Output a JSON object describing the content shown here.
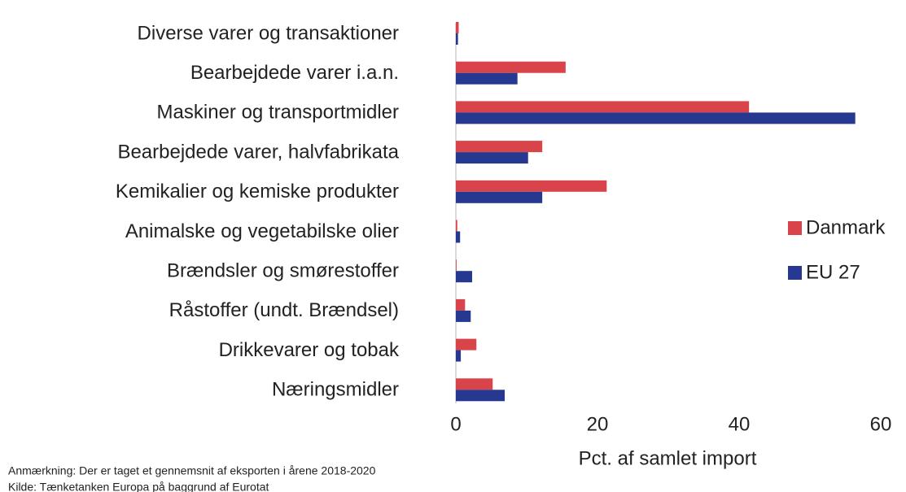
{
  "chart_data": {
    "type": "hbar",
    "categories": [
      "Diverse varer og transaktioner",
      "Bearbejdede varer i.a.n.",
      "Maskiner og transportmidler",
      "Bearbejdede varer, halvfabrikata",
      "Kemikalier og kemiske produkter",
      "Animalske og vegetabilske olier",
      "Brændsler og smørestoffer",
      "Råstoffer (undt. Brændsel)",
      "Drikkevarer og tobak",
      "Næringsmidler"
    ],
    "series": [
      {
        "name": "Danmark",
        "color": "#d9444b",
        "values": [
          0.4,
          15.5,
          41.4,
          12.2,
          21.3,
          0.2,
          0.1,
          1.3,
          2.9,
          5.2
        ]
      },
      {
        "name": "EU 27",
        "color": "#26388f",
        "values": [
          0.3,
          8.7,
          56.4,
          10.2,
          12.2,
          0.6,
          2.3,
          2.1,
          0.7,
          6.9
        ]
      }
    ],
    "xlim": [
      0,
      60
    ],
    "xticks": [
      0,
      20,
      40,
      60
    ],
    "xlabel": "Pct. af samlet import",
    "legend": "right",
    "notes": [
      "Anmærkning: Der er taget et gennemsnit af eksporten i årene 2018-2020",
      "Kilde: Tænketanken Europa på baggrund af Eurotat"
    ]
  }
}
